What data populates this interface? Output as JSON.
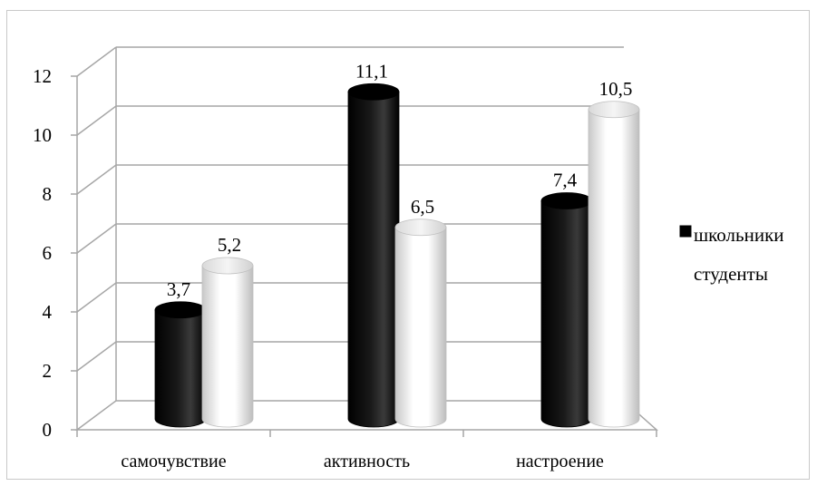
{
  "chart_data": {
    "type": "bar",
    "title": "",
    "xlabel": "",
    "ylabel": "",
    "ylim": [
      0,
      12
    ],
    "yticks": [
      "0",
      "2",
      "4",
      "6",
      "8",
      "10",
      "12"
    ],
    "grid": true,
    "legend_position": "right",
    "categories": [
      "самочувствие",
      "активность",
      "настроение"
    ],
    "series": [
      {
        "name": "школьники",
        "values": [
          3.7,
          11.1,
          7.4
        ],
        "labels": [
          "3,7",
          "11,1",
          "7,4"
        ],
        "color": "#000000"
      },
      {
        "name": "студенты",
        "values": [
          5.2,
          6.5,
          10.5
        ],
        "labels": [
          "5,2",
          "6,5",
          "10,5"
        ],
        "color": "#f2f2f2"
      }
    ]
  }
}
